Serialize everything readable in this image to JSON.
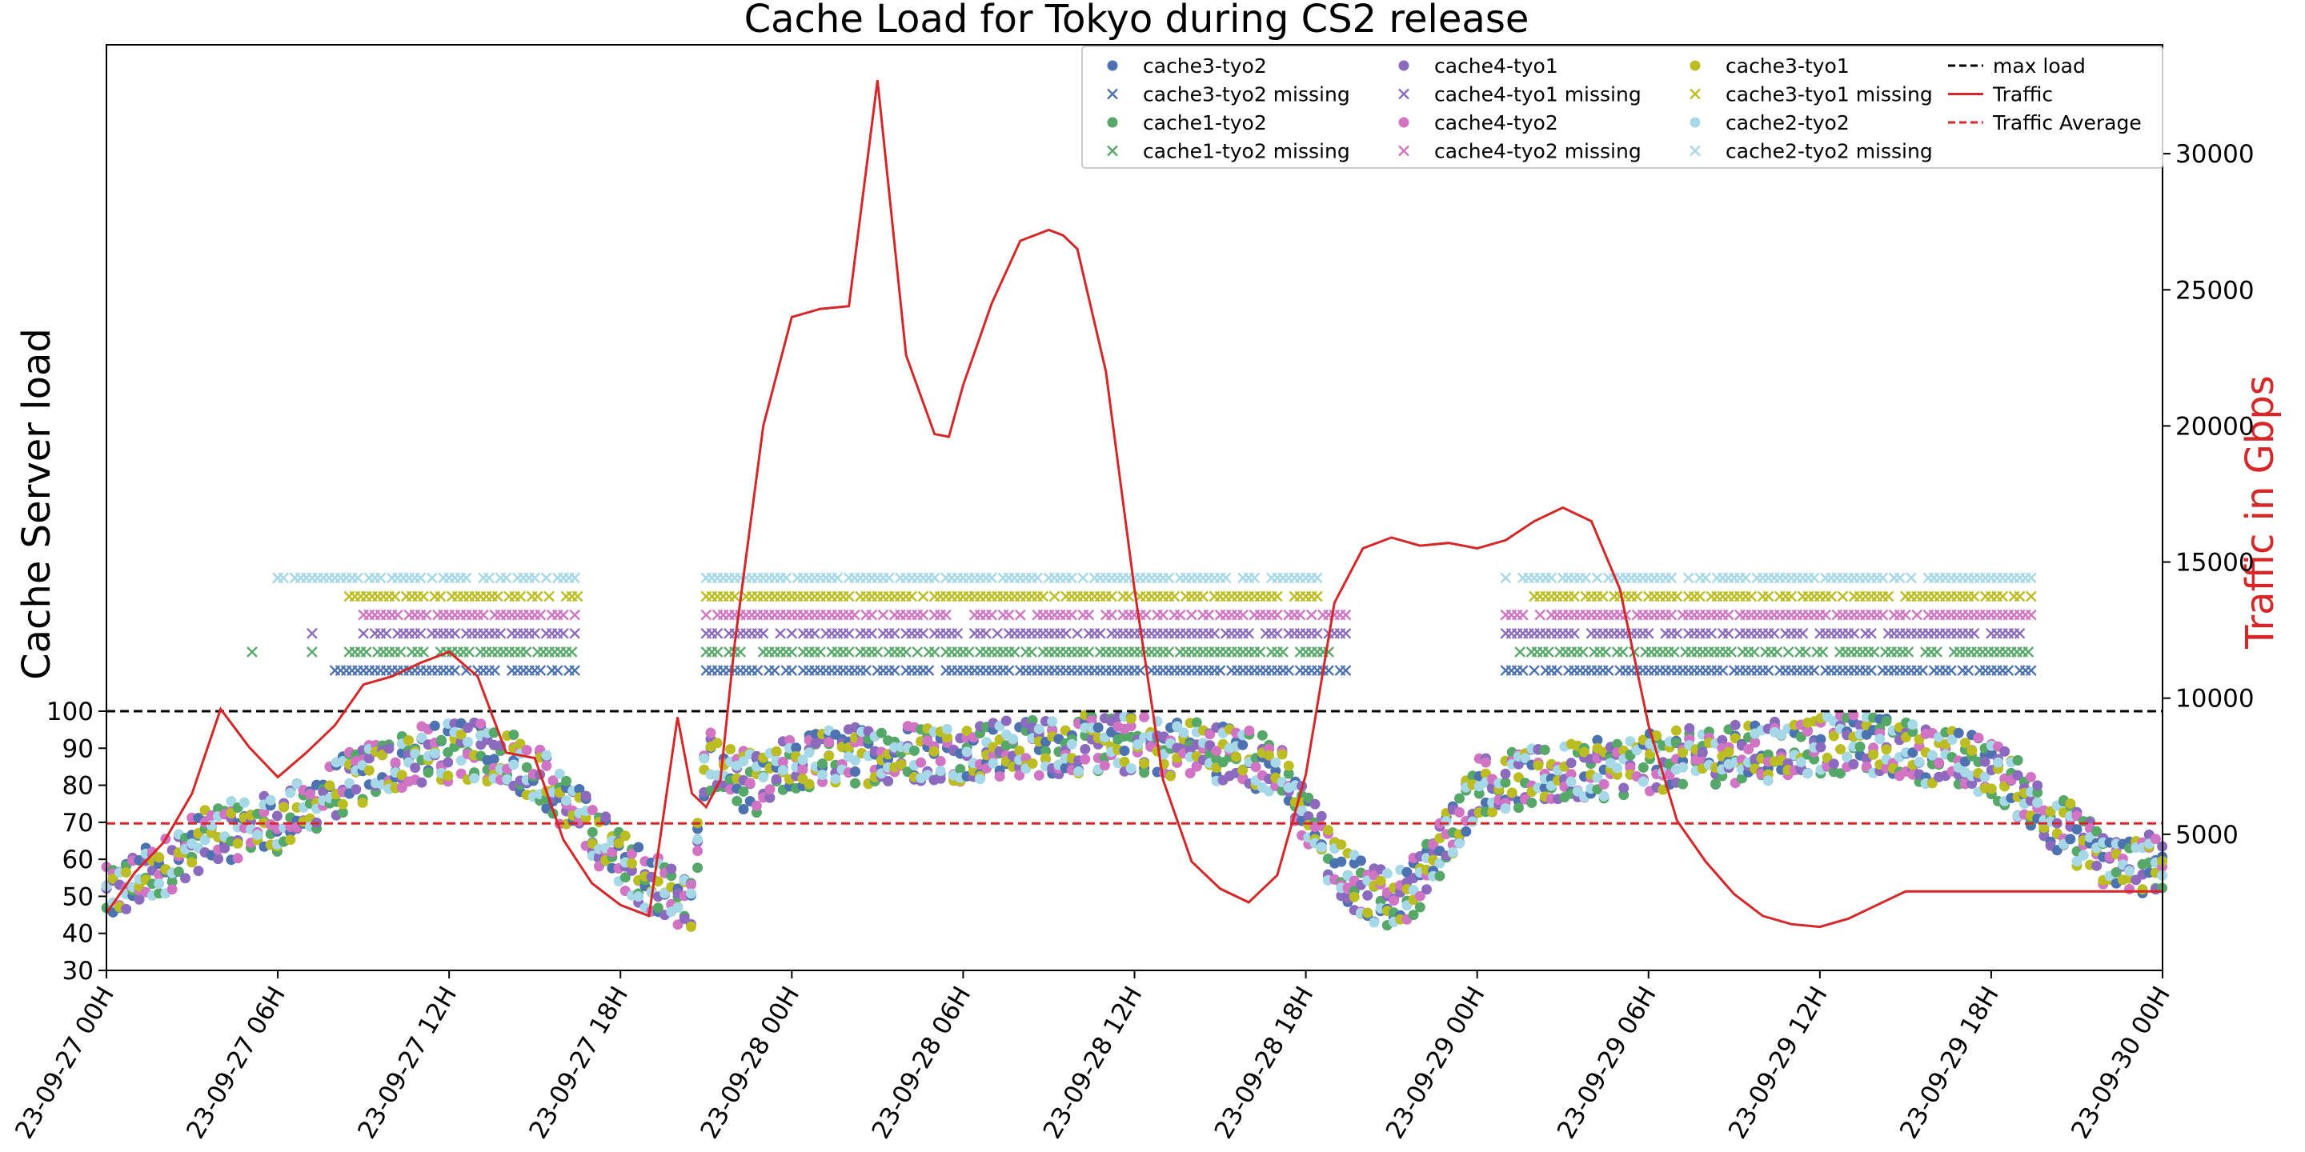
{
  "chart_data": {
    "type": "scatter",
    "title": "Cache Load for Tokyo during CS2 release",
    "ylabel": "Cache Server load",
    "y2label": "Traffic in Gbps",
    "y2label_color": "#d62728",
    "xlabel": "",
    "x_ticks": [
      "23-09-27 00H",
      "23-09-27 06H",
      "23-09-27 12H",
      "23-09-27 18H",
      "23-09-28 00H",
      "23-09-28 06H",
      "23-09-28 12H",
      "23-09-28 18H",
      "23-09-29 00H",
      "23-09-29 06H",
      "23-09-29 12H",
      "23-09-29 18H",
      "23-09-30 00H"
    ],
    "xlim_hours": [
      0,
      72
    ],
    "y_ticks": [
      30,
      40,
      50,
      60,
      70,
      80,
      90,
      100
    ],
    "ylim": [
      30,
      100
    ],
    "y2_ticks": [
      5000,
      10000,
      15000,
      20000,
      25000,
      30000
    ],
    "y2lim": [
      0,
      34000
    ],
    "max_load": 100,
    "traffic_average": 5400,
    "grid": false,
    "legend_position": "top-right",
    "legend": [
      {
        "label": "cache3-tyo2",
        "marker": "dot",
        "color": "#4c72b0"
      },
      {
        "label": "cache3-tyo2 missing",
        "marker": "x",
        "color": "#4c72b0"
      },
      {
        "label": "cache1-tyo2",
        "marker": "dot",
        "color": "#55a868"
      },
      {
        "label": "cache1-tyo2 missing",
        "marker": "x",
        "color": "#55a868"
      },
      {
        "label": "cache4-tyo1",
        "marker": "dot",
        "color": "#8c6bbf"
      },
      {
        "label": "cache4-tyo1 missing",
        "marker": "x",
        "color": "#8c6bbf"
      },
      {
        "label": "cache4-tyo2",
        "marker": "dot",
        "color": "#d074c3"
      },
      {
        "label": "cache4-tyo2 missing",
        "marker": "x",
        "color": "#d074c3"
      },
      {
        "label": "cache3-tyo1",
        "marker": "dot",
        "color": "#bcbd22"
      },
      {
        "label": "cache3-tyo1 missing",
        "marker": "x",
        "color": "#bcbd22"
      },
      {
        "label": "cache2-tyo2",
        "marker": "dot",
        "color": "#a6d8e8"
      },
      {
        "label": "cache2-tyo2 missing",
        "marker": "x",
        "color": "#a6d8e8"
      },
      {
        "label": "max load",
        "marker": "dashed",
        "color": "#000000"
      },
      {
        "label": "Traffic",
        "marker": "line",
        "color": "#d62728"
      },
      {
        "label": "Traffic Average",
        "marker": "dashed",
        "color": "#d62728"
      }
    ],
    "traffic_series": {
      "hours": [
        0,
        1,
        2,
        3,
        4,
        5,
        6,
        7,
        8,
        9,
        10,
        11,
        12,
        13,
        14,
        15,
        15.5,
        16,
        17,
        18,
        19,
        20,
        20.5,
        21,
        21.5,
        22,
        23,
        24,
        25,
        26,
        27,
        28,
        29,
        29.5,
        30,
        31,
        32,
        33,
        33.5,
        34,
        35,
        36,
        37,
        38,
        39,
        40,
        41,
        42,
        43,
        44,
        45,
        46,
        47,
        48,
        49,
        50,
        51,
        52,
        53,
        54,
        55,
        56,
        57,
        58,
        59,
        60,
        61,
        62,
        63,
        64,
        65,
        66,
        67,
        68,
        69,
        70,
        71,
        71.5,
        72
      ],
      "gbps": [
        2100,
        3600,
        4700,
        6500,
        9600,
        8200,
        7100,
        8000,
        9000,
        10500,
        10800,
        11300,
        11700,
        10800,
        8000,
        7800,
        6300,
        4800,
        3200,
        2400,
        2000,
        9300,
        6500,
        6000,
        7000,
        12000,
        20000,
        24000,
        24300,
        24400,
        32700,
        22600,
        19700,
        19600,
        21500,
        24500,
        26800,
        27200,
        27000,
        26500,
        22000,
        14000,
        7000,
        4000,
        3000,
        2500,
        3500,
        7200,
        13500,
        15500,
        15900,
        15600,
        15700,
        15500,
        15800,
        16500,
        17000,
        16500,
        14000,
        9000,
        5500,
        4000,
        2800,
        2000,
        1700,
        1600,
        1900,
        2400,
        2900,
        2900,
        2900,
        2900,
        2900,
        2900,
        2900,
        2900,
        2900,
        2900,
        2900
      ]
    },
    "load_trend": {
      "hours": [
        0,
        1,
        2,
        3,
        4,
        5,
        6,
        7,
        8,
        9,
        10,
        11,
        12,
        13,
        14,
        15,
        16,
        17,
        18,
        19,
        20,
        20.5,
        21,
        22,
        23,
        24,
        26,
        28,
        30,
        32,
        34,
        36,
        38,
        40,
        41,
        42,
        43,
        44,
        45,
        46,
        48,
        50,
        52,
        54,
        56,
        58,
        60,
        62,
        64,
        66,
        68,
        70,
        71,
        72
      ],
      "load": [
        50,
        54,
        58,
        64,
        67,
        69,
        70,
        74,
        79,
        83,
        86,
        88,
        89,
        89,
        88,
        84,
        76,
        68,
        60,
        54,
        50,
        48,
        87,
        82,
        80,
        86,
        88,
        89,
        89,
        90,
        91,
        91,
        90,
        88,
        84,
        72,
        58,
        52,
        49,
        54,
        80,
        82,
        84,
        86,
        88,
        89,
        91,
        91,
        88,
        85,
        72,
        60,
        58,
        60
      ],
      "spread": 8
    },
    "missing_rows": [
      {
        "series": "cache3-tyo2 missing",
        "level": 111,
        "color": "#4c72b0",
        "ranges": [
          [
            8,
            16.5
          ],
          [
            21,
            43.5
          ],
          [
            49,
            67.5
          ]
        ]
      },
      {
        "series": "cache1-tyo2 missing",
        "level": 116,
        "color": "#55a868",
        "ranges": [
          [
            8.5,
            16.5
          ],
          [
            21,
            43
          ],
          [
            49.5,
            67.5
          ]
        ]
      },
      {
        "series": "cache4-tyo1 missing",
        "level": 121,
        "color": "#8c6bbf",
        "ranges": [
          [
            9,
            16.5
          ],
          [
            21,
            43.5
          ],
          [
            49,
            67.5
          ]
        ]
      },
      {
        "series": "cache4-tyo2 missing",
        "level": 126,
        "color": "#d074c3",
        "ranges": [
          [
            9,
            16.5
          ],
          [
            21,
            43.5
          ],
          [
            49,
            67.5
          ]
        ]
      },
      {
        "series": "cache3-tyo1 missing",
        "level": 131,
        "color": "#bcbd22",
        "ranges": [
          [
            8.5,
            16.5
          ],
          [
            21,
            42.5
          ],
          [
            50,
            67.5
          ]
        ]
      },
      {
        "series": "cache2-tyo2 missing",
        "level": 136,
        "color": "#a6d8e8",
        "ranges": [
          [
            6,
            16.5
          ],
          [
            21,
            42.5
          ],
          [
            49,
            67.5
          ]
        ]
      }
    ],
    "sparse_missing": [
      {
        "series": "cache1-tyo2 missing",
        "hour": 5.1,
        "level": 116
      },
      {
        "series": "cache1-tyo2 missing",
        "hour": 7.2,
        "level": 116
      },
      {
        "series": "cache4-tyo1 missing",
        "hour": 7.2,
        "level": 121
      },
      {
        "series": "cache2-tyo2 missing",
        "hour": 6.0,
        "level": 136
      }
    ]
  }
}
